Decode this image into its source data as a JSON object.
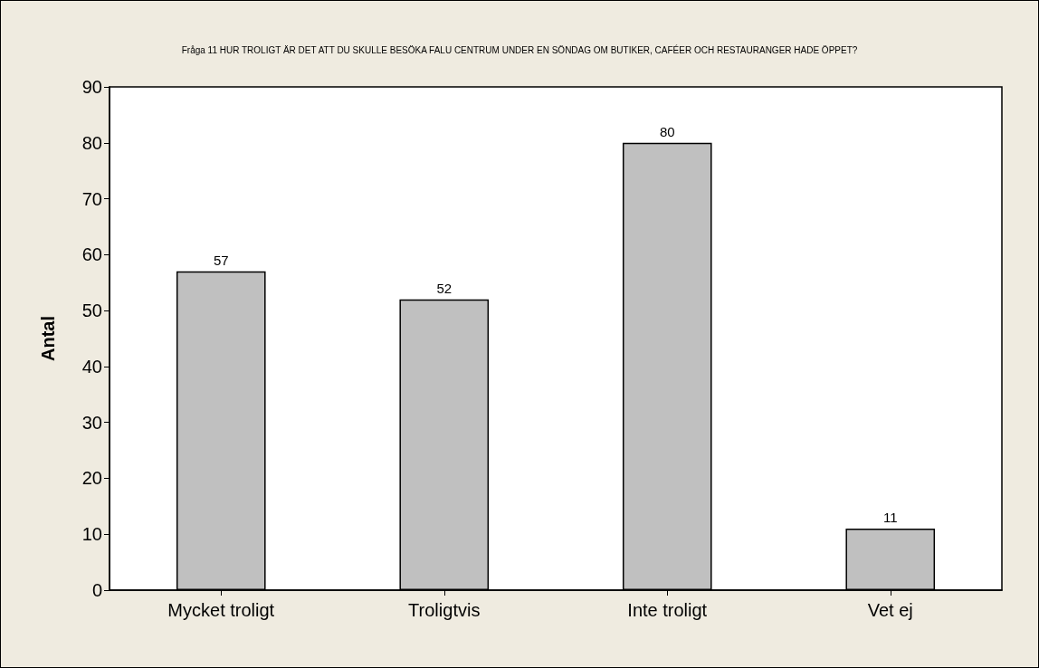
{
  "chart_data": {
    "type": "bar",
    "title": "Fråga 11 HUR TROLIGT ÄR DET ATT DU SKULLE BESÖKA FALU CENTRUM UNDER EN SÖNDAG OM BUTIKER, CAFÉER OCH RESTAURANGER HADE ÖPPET?",
    "ylabel": "Antal",
    "categories": [
      "Mycket troligt",
      "Troligtvis",
      "Inte troligt",
      "Vet ej"
    ],
    "values": [
      57,
      52,
      80,
      11
    ],
    "color": "#c0c0c0",
    "ylim": [
      0,
      90
    ],
    "yticks": [
      0,
      10,
      20,
      30,
      40,
      50,
      60,
      70,
      80,
      90
    ],
    "data_labels": true
  }
}
